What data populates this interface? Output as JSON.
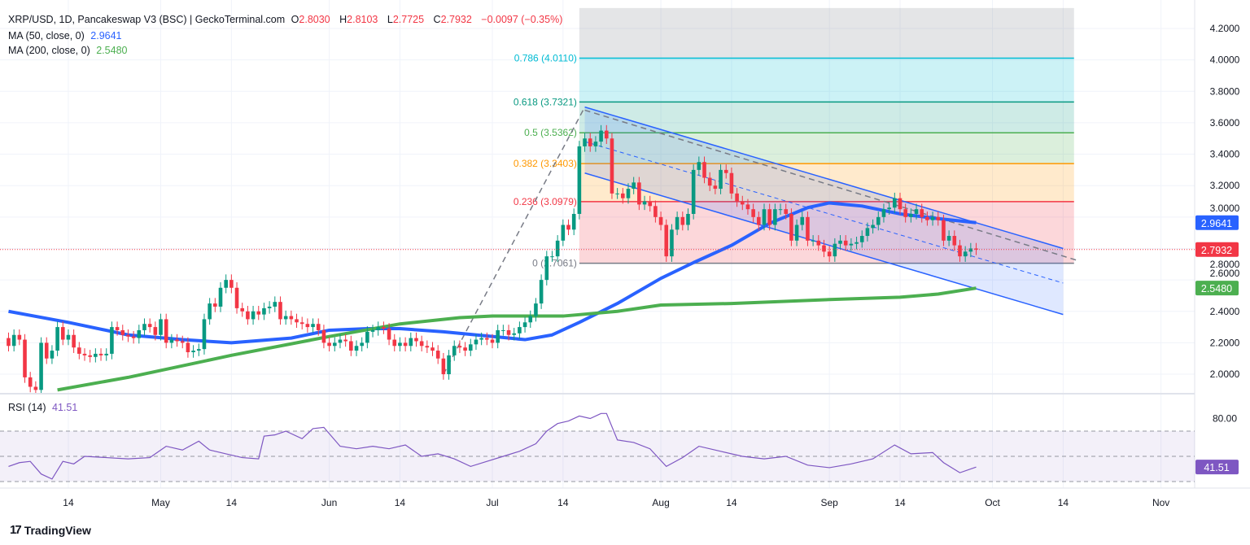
{
  "header": {
    "symbol": "XRP/USD, 1D, Pancakeswap V3 (BSC) | GeckoTerminal.com",
    "o_label": "O",
    "o": "2.8030",
    "h_label": "H",
    "h": "2.8103",
    "l_label": "L",
    "l": "2.7725",
    "c_label": "C",
    "c": "2.7932",
    "change": "−0.0097 (−0.35%)",
    "ma50_label": "MA (50, close, 0)",
    "ma50_value": "2.9641",
    "ma200_label": "MA (200, close, 0)",
    "ma200_value": "2.5480",
    "rsi_label": "RSI (14)",
    "rsi_value": "41.51"
  },
  "branding": {
    "logo_text": "TradingView"
  },
  "colors": {
    "up": "#089981",
    "down": "#f23645",
    "ma50": "#2962ff",
    "ma200": "#4caf50",
    "rsi": "#7e57c2",
    "channel": "#2962ff"
  },
  "chart_data": [
    {
      "type": "candlestick",
      "title": "XRP/USD, 1D",
      "y_axis": {
        "ticks": [
          "2.0000",
          "2.2000",
          "2.4000",
          "2.6000",
          "2.8000",
          "3.0000",
          "3.2000",
          "3.4000",
          "3.6000",
          "3.8000",
          "4.0000",
          "4.2000"
        ],
        "ylim": [
          1.88,
          4.33
        ]
      },
      "x_axis": {
        "ticks": [
          {
            "date": "04-14",
            "label": "14"
          },
          {
            "date": "05-01",
            "label": "May"
          },
          {
            "date": "05-14",
            "label": "14"
          },
          {
            "date": "06-01",
            "label": "Jun"
          },
          {
            "date": "06-14",
            "label": "14"
          },
          {
            "date": "07-01",
            "label": "Jul"
          },
          {
            "date": "07-14",
            "label": "14"
          },
          {
            "date": "08-01",
            "label": "Aug"
          },
          {
            "date": "08-14",
            "label": "14"
          },
          {
            "date": "09-01",
            "label": "Sep"
          },
          {
            "date": "09-14",
            "label": "14"
          },
          {
            "date": "10-01",
            "label": "Oct"
          },
          {
            "date": "10-14",
            "label": "14"
          },
          {
            "date": "11-01",
            "label": "Nov"
          }
        ]
      },
      "start_date": "04-03",
      "closes": [
        2.18,
        2.25,
        2.22,
        1.98,
        1.92,
        1.9,
        2.2,
        2.1,
        2.15,
        2.3,
        2.22,
        2.25,
        2.17,
        2.13,
        2.12,
        2.11,
        2.13,
        2.12,
        2.13,
        2.3,
        2.28,
        2.25,
        2.24,
        2.23,
        2.28,
        2.32,
        2.3,
        2.25,
        2.35,
        2.2,
        2.22,
        2.21,
        2.2,
        2.14,
        2.15,
        2.16,
        2.35,
        2.45,
        2.43,
        2.55,
        2.6,
        2.55,
        2.42,
        2.4,
        2.35,
        2.4,
        2.38,
        2.42,
        2.43,
        2.46,
        2.35,
        2.37,
        2.35,
        2.33,
        2.32,
        2.3,
        2.32,
        2.28,
        2.2,
        2.18,
        2.2,
        2.22,
        2.21,
        2.15,
        2.18,
        2.2,
        2.27,
        2.28,
        2.3,
        2.29,
        2.22,
        2.18,
        2.2,
        2.18,
        2.23,
        2.21,
        2.18,
        2.17,
        2.15,
        2.1,
        2.0,
        2.12,
        2.18,
        2.17,
        2.15,
        2.19,
        2.22,
        2.23,
        2.22,
        2.2,
        2.28,
        2.28,
        2.25,
        2.26,
        2.3,
        2.33,
        2.37,
        2.45,
        2.6,
        2.75,
        2.75,
        2.85,
        2.95,
        2.92,
        3.02,
        3.45,
        3.5,
        3.45,
        3.48,
        3.55,
        3.5,
        3.15,
        3.15,
        3.12,
        3.18,
        3.22,
        3.08,
        3.1,
        3.07,
        3.0,
        2.95,
        2.75,
        2.92,
        3.0,
        2.95,
        3.02,
        3.3,
        3.35,
        3.25,
        3.2,
        3.18,
        3.3,
        3.28,
        3.15,
        3.1,
        3.08,
        3.05,
        3.0,
        2.95,
        3.05,
        2.95,
        3.05,
        3.05,
        3.02,
        2.85,
        2.95,
        3.0,
        2.85,
        2.85,
        2.82,
        2.78,
        2.75,
        2.83,
        2.85,
        2.82,
        2.83,
        2.84,
        2.88,
        2.93,
        2.95,
        3.0,
        3.05,
        3.06,
        3.12,
        3.05,
        3.0,
        3.02,
        3.05,
        3.0,
        2.98,
        3.0,
        2.98,
        2.85,
        2.88,
        2.82,
        2.75,
        2.78,
        2.8,
        2.7932
      ],
      "last_price": 2.7932,
      "series": [
        {
          "name": "MA (50, close, 0)",
          "last": 2.9641,
          "points": [
            [
              "04-03",
              2.4
            ],
            [
              "04-14",
              2.33
            ],
            [
              "04-25",
              2.25
            ],
            [
              "05-05",
              2.22
            ],
            [
              "05-14",
              2.2
            ],
            [
              "05-25",
              2.23
            ],
            [
              "06-01",
              2.28
            ],
            [
              "06-08",
              2.29
            ],
            [
              "06-14",
              2.29
            ],
            [
              "06-22",
              2.27
            ],
            [
              "07-01",
              2.24
            ],
            [
              "07-07",
              2.22
            ],
            [
              "07-12",
              2.25
            ],
            [
              "07-17",
              2.33
            ],
            [
              "07-24",
              2.45
            ],
            [
              "08-01",
              2.61
            ],
            [
              "08-07",
              2.71
            ],
            [
              "08-14",
              2.82
            ],
            [
              "08-21",
              2.96
            ],
            [
              "08-28",
              3.06
            ],
            [
              "09-01",
              3.09
            ],
            [
              "09-07",
              3.07
            ],
            [
              "09-14",
              3.02
            ],
            [
              "09-21",
              2.99
            ],
            [
              "09-28",
              2.9641
            ]
          ]
        },
        {
          "name": "MA (200, close, 0)",
          "last": 2.548,
          "points": [
            [
              "04-12",
              1.9
            ],
            [
              "04-25",
              1.98
            ],
            [
              "05-14",
              2.12
            ],
            [
              "06-01",
              2.24
            ],
            [
              "06-14",
              2.32
            ],
            [
              "06-25",
              2.36
            ],
            [
              "07-01",
              2.37
            ],
            [
              "07-14",
              2.37
            ],
            [
              "07-24",
              2.4
            ],
            [
              "08-01",
              2.44
            ],
            [
              "08-14",
              2.45
            ],
            [
              "09-01",
              2.475
            ],
            [
              "09-14",
              2.49
            ],
            [
              "09-21",
              2.51
            ],
            [
              "09-28",
              2.548
            ]
          ]
        }
      ],
      "fibonacci": {
        "from_date": "07-17",
        "to_date": "10-16",
        "top": 4.33,
        "levels": [
          {
            "ratio": "0",
            "price": 2.7061,
            "label": "0 (2.7061)",
            "color": "#787b86",
            "fill": "#f23645"
          },
          {
            "ratio": "0.236",
            "price": 3.0979,
            "label": "0.236 (3.0979)",
            "color": "#f23645",
            "fill": "#ff9800"
          },
          {
            "ratio": "0.382",
            "price": 3.3403,
            "label": "0.382 (3.3403)",
            "color": "#ff9800",
            "fill": "#4caf50"
          },
          {
            "ratio": "0.5",
            "price": 3.5362,
            "label": "0.5 (3.5362)",
            "color": "#4caf50",
            "fill": "#089981"
          },
          {
            "ratio": "0.618",
            "price": 3.7321,
            "label": "0.618 (3.7321)",
            "color": "#089981",
            "fill": "#00bcd4"
          },
          {
            "ratio": "0.786",
            "price": 4.011,
            "label": "0.786 (4.0110)",
            "color": "#00bcd4",
            "fill": "#787b86"
          }
        ]
      },
      "trend_line": [
        [
          "06-22",
          2.0
        ],
        [
          "07-18",
          3.7
        ]
      ],
      "channel": {
        "upper": [
          [
            "07-18",
            3.7
          ],
          [
            "10-14",
            2.8
          ]
        ],
        "middle": [
          [
            "07-18",
            3.48
          ],
          [
            "10-14",
            2.58
          ]
        ],
        "lower": [
          [
            "07-18",
            3.28
          ],
          [
            "10-14",
            2.38
          ]
        ],
        "dashed_upper": [
          [
            "07-18",
            3.68
          ],
          [
            "10-17",
            2.72
          ]
        ]
      }
    },
    {
      "type": "line",
      "title": "RSI (14)",
      "y_axis": {
        "ticks": [
          "80.00"
        ],
        "bands": [
          70,
          50,
          30
        ]
      },
      "last": 41.51,
      "points": [
        [
          "04-03",
          42
        ],
        [
          "04-05",
          45
        ],
        [
          "04-07",
          46
        ],
        [
          "04-09",
          36
        ],
        [
          "04-11",
          32
        ],
        [
          "04-13",
          46
        ],
        [
          "04-15",
          44
        ],
        [
          "04-17",
          50
        ],
        [
          "04-21",
          49
        ],
        [
          "04-25",
          48
        ],
        [
          "04-29",
          49
        ],
        [
          "05-02",
          58
        ],
        [
          "05-05",
          55
        ],
        [
          "05-08",
          62
        ],
        [
          "05-10",
          55
        ],
        [
          "05-13",
          52
        ],
        [
          "05-16",
          49
        ],
        [
          "05-19",
          48
        ],
        [
          "05-20",
          66
        ],
        [
          "05-22",
          67
        ],
        [
          "05-24",
          70
        ],
        [
          "05-27",
          64
        ],
        [
          "05-29",
          72
        ],
        [
          "05-31",
          73
        ],
        [
          "06-03",
          58
        ],
        [
          "06-06",
          56
        ],
        [
          "06-09",
          58
        ],
        [
          "06-12",
          56
        ],
        [
          "06-15",
          59
        ],
        [
          "06-18",
          50
        ],
        [
          "06-21",
          52
        ],
        [
          "06-24",
          48
        ],
        [
          "06-27",
          42
        ],
        [
          "06-30",
          46
        ],
        [
          "07-03",
          50
        ],
        [
          "07-06",
          54
        ],
        [
          "07-09",
          60
        ],
        [
          "07-11",
          70
        ],
        [
          "07-13",
          76
        ],
        [
          "07-15",
          78
        ],
        [
          "07-17",
          82
        ],
        [
          "07-19",
          80
        ],
        [
          "07-21",
          84
        ],
        [
          "07-22",
          84
        ],
        [
          "07-24",
          63
        ],
        [
          "07-27",
          61
        ],
        [
          "07-30",
          56
        ],
        [
          "08-02",
          42
        ],
        [
          "08-05",
          49
        ],
        [
          "08-08",
          58
        ],
        [
          "08-12",
          54
        ],
        [
          "08-16",
          50
        ],
        [
          "08-20",
          48
        ],
        [
          "08-24",
          50
        ],
        [
          "08-28",
          43
        ],
        [
          "09-01",
          41
        ],
        [
          "09-05",
          44
        ],
        [
          "09-09",
          48
        ],
        [
          "09-13",
          59
        ],
        [
          "09-16",
          52
        ],
        [
          "09-20",
          53
        ],
        [
          "09-22",
          45
        ],
        [
          "09-25",
          37
        ],
        [
          "09-28",
          41.51
        ]
      ]
    }
  ]
}
